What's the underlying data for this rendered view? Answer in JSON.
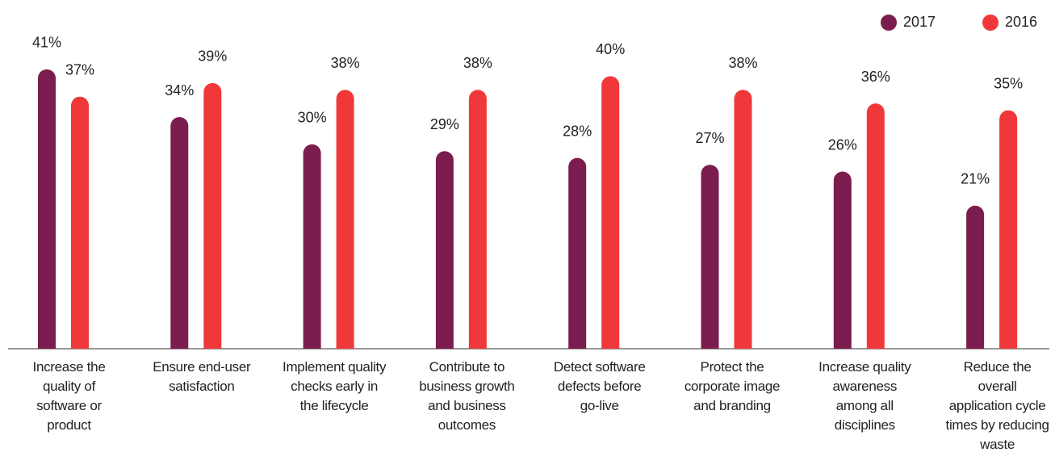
{
  "chart_data": {
    "type": "bar",
    "categories": [
      "Increase the quality of software or product",
      "Ensure end-user satisfaction",
      "Implement quality checks early in the lifecycle",
      "Contribute to business growth and business outcomes",
      "Detect software defects before go-live",
      "Protect the corporate image and branding",
      "Increase quality awareness among all disciplines",
      "Reduce the overall application cycle times by reducing waste"
    ],
    "series": [
      {
        "name": "2017",
        "color": "#7b1d4e",
        "values": [
          41,
          34,
          30,
          29,
          28,
          27,
          26,
          21
        ],
        "value_labels": [
          "41%",
          "34%",
          "30%",
          "29%",
          "28%",
          "27%",
          "26%",
          "21%"
        ]
      },
      {
        "name": "2016",
        "color": "#f0383a",
        "values": [
          37,
          39,
          38,
          38,
          40,
          38,
          36,
          35
        ],
        "value_labels": [
          "37%",
          "39%",
          "38%",
          "38%",
          "40%",
          "38%",
          "36%",
          "35%"
        ]
      }
    ],
    "ylim": [
      0,
      50
    ]
  }
}
